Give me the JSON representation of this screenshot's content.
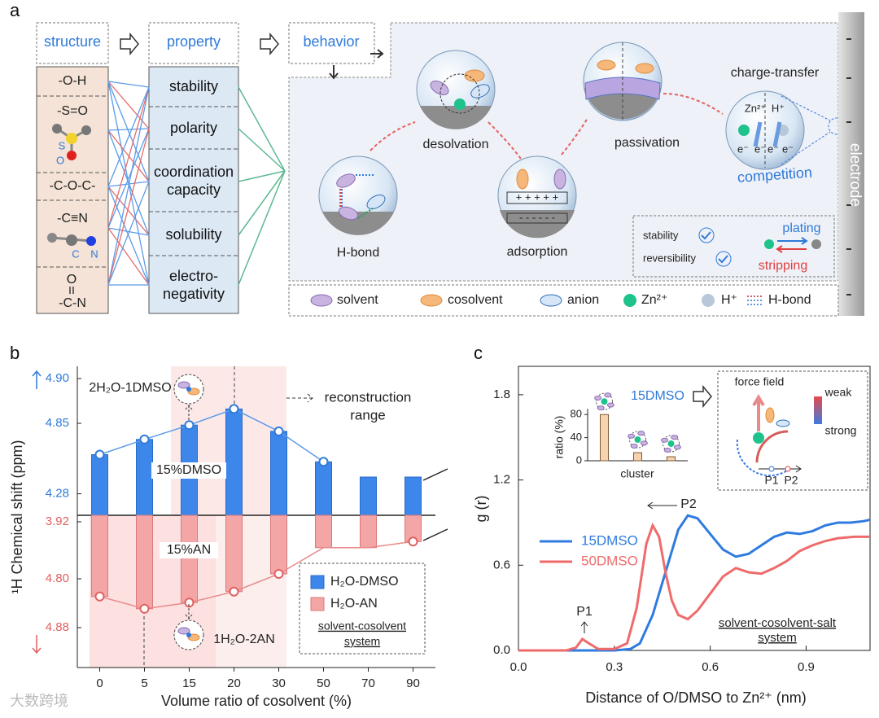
{
  "panel_a": {
    "label": "a",
    "headers": [
      "structure",
      "property",
      "behavior"
    ],
    "structure_groups": [
      {
        "label": "-O-H"
      },
      {
        "label": "-S=O",
        "atoms": [
          "S",
          "O"
        ]
      },
      {
        "label": "-C-O-C-"
      },
      {
        "label": "-C≡N",
        "atoms": [
          "C",
          "N"
        ]
      },
      {
        "label": "-C-N",
        "atoms": [
          "O"
        ]
      }
    ],
    "properties": [
      [
        "stability"
      ],
      [
        "polarity"
      ],
      [
        "coordination",
        "capacity"
      ],
      [
        "solubility"
      ],
      [
        "electro-",
        "negativity"
      ]
    ],
    "behaviors": {
      "h_bond": "H-bond",
      "desolvation": "desolvation",
      "adsorption": "adsorption",
      "passivation": "passivation",
      "charge_transfer": "charge-transfer"
    },
    "charge_transfer_labels": [
      "Zn²⁺",
      "H⁺",
      "e⁻",
      "competition"
    ],
    "electrode": "electrode",
    "metrics": [
      "stability",
      "reversibility"
    ],
    "plating": "plating",
    "stripping": "stripping",
    "legend": [
      "solvent",
      "cosolvent",
      "anion",
      "Zn²⁺",
      "H⁺",
      "H-bond"
    ]
  },
  "chart_data": [
    {
      "type": "bar",
      "panel_label": "b",
      "categories": [
        "0",
        "5",
        "15",
        "20",
        "30",
        "50",
        "70",
        "90"
      ],
      "xlabel": "Volume ratio of cosolvent (%)",
      "ylabel": "¹H Chemical shift (ppm)",
      "series": [
        {
          "name": "H₂O-DMSO",
          "color": "#3d86ea",
          "values": [
            4.815,
            4.832,
            4.848,
            4.866,
            4.841,
            4.807,
            4.79,
            4.79
          ],
          "markers": [
            true,
            true,
            true,
            true,
            true,
            true,
            false,
            false
          ]
        },
        {
          "name": "H₂O-AN",
          "color": "#f4a5a5",
          "axis": "y2",
          "values": [
            4.829,
            4.849,
            4.839,
            4.821,
            4.792,
            4.749,
            4.749,
            4.739
          ],
          "markers": [
            true,
            true,
            true,
            true,
            true,
            false,
            false,
            true
          ]
        }
      ],
      "ylim": [
        4.2,
        4.92
      ],
      "ybreak": [
        4.3,
        4.78
      ],
      "yticks": [
        4.28,
        4.85,
        {
          "value": 4.9,
          "label": "4.90"
        }
      ],
      "y2lim": [
        3.9,
        4.92
      ],
      "y2break": [
        3.94,
        4.72
      ],
      "y2ticks": [
        3.92,
        {
          "value": 4.8,
          "label": "4.80"
        },
        4.88
      ],
      "annotations": [
        "2H₂O-1DMSO",
        "reconstruction",
        "range",
        "15%DMSO",
        "15%AN",
        "1H₂O-2AN"
      ],
      "legend_note": [
        "solvent-cosolvent",
        "system"
      ],
      "watermark": "大数跨境"
    },
    {
      "type": "line",
      "panel_label": "c",
      "xlabel": "Distance of O/DMSO to Zn²⁺ (nm)",
      "ylabel": "g (r)",
      "xlim": [
        0,
        1.1
      ],
      "ylim": [
        0,
        2.0
      ],
      "xticks": [
        {
          "value": 0,
          "label": "0.0"
        },
        {
          "value": 0.3,
          "label": "0.3"
        },
        {
          "value": 0.6,
          "label": "0.6"
        },
        {
          "value": 0.9,
          "label": "0.9"
        }
      ],
      "yticks": [
        {
          "value": 0,
          "label": "0.0"
        },
        {
          "value": 0.6,
          "label": "0.6"
        },
        {
          "value": 1.2,
          "label": "1.2"
        },
        {
          "value": 1.8,
          "label": "1.8"
        }
      ],
      "series": [
        {
          "name": "15DMSO",
          "color": "#2f7be0",
          "x": [
            0,
            0.3,
            0.35,
            0.38,
            0.42,
            0.46,
            0.5,
            0.53,
            0.56,
            0.6,
            0.64,
            0.68,
            0.72,
            0.76,
            0.8,
            0.84,
            0.88,
            0.92,
            0.96,
            1.0,
            1.04,
            1.08,
            1.1
          ],
          "values": [
            0,
            0,
            0.01,
            0.05,
            0.25,
            0.55,
            0.85,
            0.95,
            0.93,
            0.82,
            0.71,
            0.66,
            0.68,
            0.74,
            0.8,
            0.83,
            0.82,
            0.84,
            0.88,
            0.9,
            0.9,
            0.91,
            0.92
          ]
        },
        {
          "name": "50DMSO",
          "color": "#ef6b6b",
          "x": [
            0,
            0.15,
            0.18,
            0.2,
            0.22,
            0.25,
            0.3,
            0.34,
            0.37,
            0.4,
            0.42,
            0.44,
            0.46,
            0.48,
            0.5,
            0.53,
            0.56,
            0.6,
            0.64,
            0.68,
            0.72,
            0.76,
            0.8,
            0.84,
            0.88,
            0.92,
            0.96,
            1.0,
            1.05,
            1.1
          ],
          "values": [
            0,
            0,
            0.02,
            0.08,
            0.05,
            0.01,
            0.01,
            0.05,
            0.3,
            0.75,
            0.88,
            0.8,
            0.55,
            0.35,
            0.25,
            0.22,
            0.28,
            0.4,
            0.52,
            0.58,
            0.55,
            0.54,
            0.58,
            0.63,
            0.7,
            0.74,
            0.77,
            0.79,
            0.8,
            0.8
          ]
        }
      ],
      "annotations": [
        "P1",
        "P2",
        "solvent-cosolvent-salt",
        "system"
      ]
    },
    {
      "type": "bar",
      "ylabel": "ratio (%)",
      "xlabel": "cluster",
      "categories": [
        null,
        null,
        null
      ],
      "values": [
        80,
        14,
        7
      ],
      "color": "#f6d2ad",
      "ylim": [
        0,
        90
      ],
      "yticks": [
        0,
        40,
        80
      ],
      "annotations": [
        "15DMSO",
        "force field",
        "weak",
        "strong",
        "P1",
        "P2"
      ]
    }
  ]
}
